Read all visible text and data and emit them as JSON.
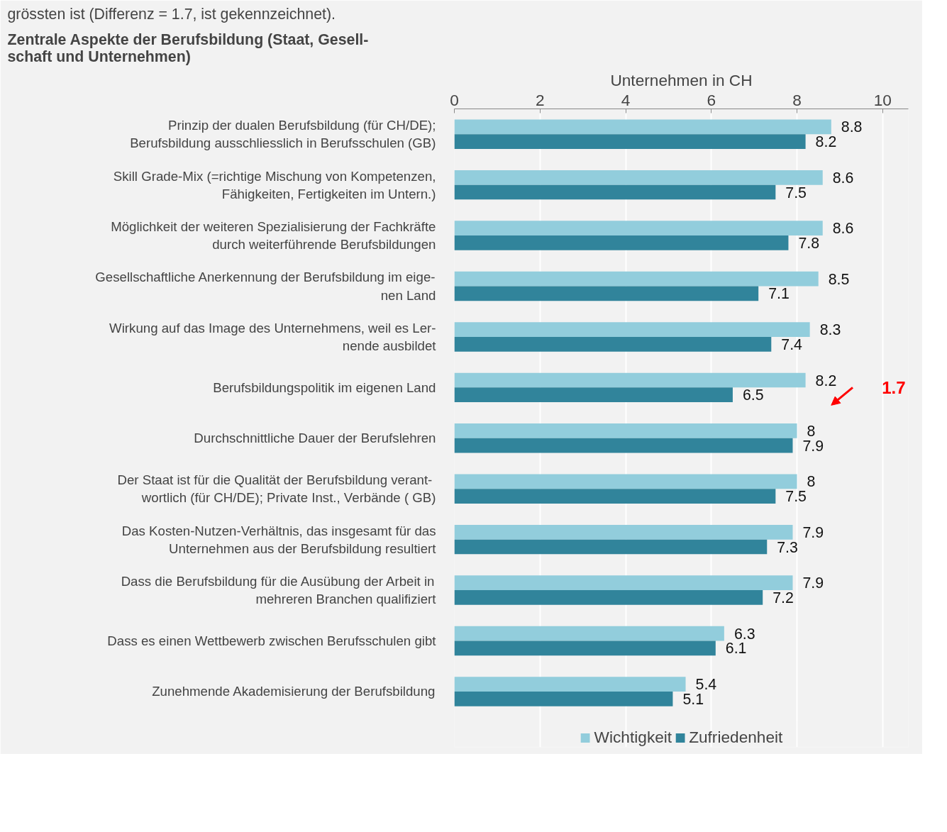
{
  "chart_data": {
    "type": "bar",
    "orientation": "horizontal",
    "title": "Zentrale Aspekte der Berufsbildung (Staat, Gesell-\nschaft und Unternehmen)",
    "xlabel": "Unternehmen in CH",
    "categories": [
      "Prinzip der dualen Berufsbildung (für CH/DE);\nBerufsbildung ausschliesslich in Berufsschulen (GB)",
      "Skill Grade-Mix (=richtige Mischung von Kompetenzen,\nFähigkeiten, Fertigkeiten im Untern.)",
      "Möglichkeit der weiteren Spezialisierung der Fachkräfte\ndurch weiterführende Berufsbildungen",
      "Gesellschaftliche Anerkennung der Berufsbildung im eige-\nnen Land",
      "Wirkung auf das Image des Unternehmens, weil es Ler-\nnende ausbildet",
      "Berufsbildungspolitik im eigenen Land",
      "Durchschnittliche Dauer der Berufslehren",
      "Der Staat  ist für die Qualität der Berufsbildung verant-\nwortlich (für CH/DE); Private Inst., Verbände ( GB)",
      "Das Kosten-Nutzen-Verhältnis, das insgesamt für das\nUnternehmen aus der Berufsbildung resultiert",
      "Dass die Berufsbildung für die Ausübung der Arbeit in\nmehreren Branchen qualifiziert",
      "Dass es einen Wettbewerb zwischen Berufsschulen gibt",
      "Zunehmende Akademisierung der Berufsbildung"
    ],
    "series": [
      {
        "name": "Wichtigkeit",
        "color": "#92cddc",
        "values": [
          8.8,
          8.6,
          8.6,
          8.5,
          8.3,
          8.2,
          8,
          8,
          7.9,
          7.9,
          6.3,
          5.4
        ]
      },
      {
        "name": "Zufriedenheit",
        "color": "#31849b",
        "values": [
          8.2,
          7.5,
          7.8,
          7.1,
          7.4,
          6.5,
          7.9,
          7.5,
          7.3,
          7.2,
          6.1,
          5.1
        ]
      }
    ],
    "xlim": [
      0,
      10.6
    ],
    "xticks": [
      0,
      2,
      4,
      6,
      8,
      10
    ],
    "grid": "x",
    "legend": "bottom",
    "data_labels": true,
    "annotations": [
      "grössten ist (Differenz = 1.7, ist gekennzeichnet).",
      "1.7"
    ]
  }
}
